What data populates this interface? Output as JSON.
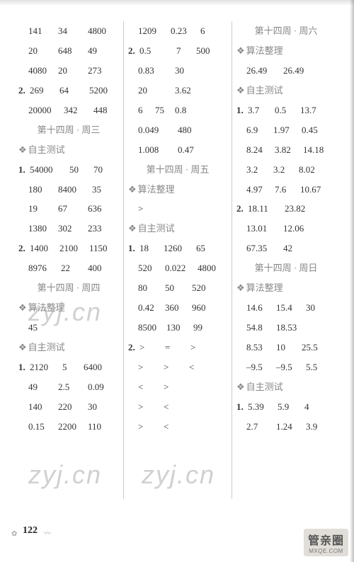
{
  "page_number": "122",
  "watermarks": {
    "text": "zyj.cn"
  },
  "logo": {
    "cn": "管亲圈",
    "en": "MXQE.COM"
  },
  "columns": [
    {
      "rows": [
        {
          "cells": [
            "141",
            "34",
            "4800"
          ],
          "widths": [
            42,
            42,
            42
          ],
          "indent": true
        },
        {
          "cells": [
            "20",
            "648",
            "49"
          ],
          "widths": [
            42,
            42,
            42
          ],
          "indent": true
        },
        {
          "cells": [
            "4080",
            "20",
            "273"
          ],
          "widths": [
            42,
            42,
            42
          ],
          "indent": true
        },
        {
          "label": "2.",
          "cells": [
            "269",
            "64",
            "5200"
          ],
          "widths": [
            42,
            42,
            42
          ]
        },
        {
          "cells": [
            "20000",
            "342",
            "448"
          ],
          "widths": [
            50,
            42,
            34
          ],
          "indent": true
        },
        {
          "section": "第十四周 · 周三"
        },
        {
          "diamond": "自主测试"
        },
        {
          "label": "1.",
          "cells": [
            "54000",
            "50",
            "70"
          ],
          "widths": [
            56,
            34,
            26
          ]
        },
        {
          "cells": [
            "180",
            "8400",
            "35"
          ],
          "widths": [
            42,
            48,
            26
          ],
          "indent": true
        },
        {
          "cells": [
            "19",
            "67",
            "636"
          ],
          "widths": [
            42,
            42,
            42
          ],
          "indent": true
        },
        {
          "cells": [
            "1380",
            "302",
            "233"
          ],
          "widths": [
            42,
            42,
            42
          ],
          "indent": true
        },
        {
          "label": "2.",
          "cells": [
            "1400",
            "2100",
            "1150"
          ],
          "widths": [
            42,
            42,
            42
          ]
        },
        {
          "cells": [
            "8976",
            "22",
            "400"
          ],
          "widths": [
            46,
            38,
            42
          ],
          "indent": true
        },
        {
          "section": "第十四周 · 周四"
        },
        {
          "diamond": "算法整理"
        },
        {
          "cells": [
            "45"
          ],
          "widths": [
            42
          ],
          "indent": true
        },
        {
          "diamond": "自主测试"
        },
        {
          "label": "1.",
          "cells": [
            "2120",
            "5",
            "6400"
          ],
          "widths": [
            46,
            30,
            42
          ]
        },
        {
          "cells": [
            "49",
            "2.5",
            "0.09"
          ],
          "widths": [
            42,
            42,
            42
          ],
          "indent": true
        },
        {
          "cells": [
            "140",
            "220",
            "30"
          ],
          "widths": [
            42,
            42,
            42
          ],
          "indent": true
        },
        {
          "cells": [
            "0.15",
            "2200",
            "110"
          ],
          "widths": [
            42,
            42,
            42
          ],
          "indent": true
        }
      ]
    },
    {
      "rows": [
        {
          "cells": [
            "1209",
            "0.23",
            "6"
          ],
          "widths": [
            46,
            42,
            26
          ],
          "indent": true
        },
        {
          "label": "2.",
          "cells": [
            "0.5",
            "7",
            "500"
          ],
          "widths": [
            52,
            28,
            36
          ]
        },
        {
          "cells": [
            "0.83",
            "30"
          ],
          "widths": [
            52,
            40
          ],
          "indent": true
        },
        {
          "cells": [
            "20",
            "3.62"
          ],
          "widths": [
            52,
            40
          ],
          "indent": true
        },
        {
          "cells": [
            "6",
            "75",
            "0.8"
          ],
          "widths": [
            24,
            28,
            40
          ],
          "indent": true
        },
        {
          "cells": [
            "0.049",
            "480"
          ],
          "widths": [
            56,
            40
          ],
          "indent": true
        },
        {
          "cells": [
            "1.008",
            "0.47"
          ],
          "widths": [
            56,
            40
          ],
          "indent": true
        },
        {
          "section": "第十四周 · 周五"
        },
        {
          "diamond": "算法整理"
        },
        {
          "cells": [
            ">"
          ],
          "widths": [
            20
          ],
          "indent": true
        },
        {
          "diamond": "自主测试"
        },
        {
          "label": "1.",
          "cells": [
            "18",
            "1260",
            "65"
          ],
          "widths": [
            34,
            46,
            28
          ]
        },
        {
          "cells": [
            "520",
            "0.022",
            "4800"
          ],
          "widths": [
            38,
            46,
            40
          ],
          "indent": true
        },
        {
          "cells": [
            "80",
            "50",
            "520"
          ],
          "widths": [
            38,
            38,
            40
          ],
          "indent": true
        },
        {
          "cells": [
            "0.42",
            "360",
            "960"
          ],
          "widths": [
            38,
            38,
            40
          ],
          "indent": true
        },
        {
          "cells": [
            "8500",
            "130",
            "99"
          ],
          "widths": [
            40,
            38,
            30
          ],
          "indent": true
        },
        {
          "label": "2.",
          "cells": [
            ">",
            "=",
            ">"
          ],
          "widths": [
            36,
            36,
            24
          ]
        },
        {
          "cells": [
            ">",
            ">",
            "<"
          ],
          "widths": [
            36,
            36,
            24
          ],
          "indent": true
        },
        {
          "cells": [
            "<",
            ">"
          ],
          "widths": [
            36,
            36
          ],
          "indent": true
        },
        {
          "cells": [
            ">",
            "<"
          ],
          "widths": [
            36,
            36
          ],
          "indent": true
        },
        {
          "cells": [
            ">",
            "<"
          ],
          "widths": [
            36,
            36
          ],
          "indent": true
        }
      ]
    },
    {
      "rows": [
        {
          "section": "第十四周 · 周六"
        },
        {
          "diamond": "算法整理"
        },
        {
          "cells": [
            "26.49",
            "26.49"
          ],
          "widths": [
            52,
            48
          ],
          "indent": true
        },
        {
          "diamond": "自主测试"
        },
        {
          "label": "1.",
          "cells": [
            "3.7",
            "0.5",
            "13.7"
          ],
          "widths": [
            38,
            36,
            40
          ]
        },
        {
          "cells": [
            "6.9",
            "1.97",
            "0.45"
          ],
          "widths": [
            38,
            40,
            40
          ],
          "indent": true
        },
        {
          "cells": [
            "8.24",
            "3.82",
            "14.18"
          ],
          "widths": [
            40,
            40,
            44
          ],
          "indent": true
        },
        {
          "cells": [
            "3.2",
            "3.2",
            "8.02"
          ],
          "widths": [
            38,
            36,
            40
          ],
          "indent": true
        },
        {
          "cells": [
            "4.97",
            "7.6",
            "10.67"
          ],
          "widths": [
            40,
            36,
            44
          ],
          "indent": true
        },
        {
          "label": "2.",
          "cells": [
            "18.11",
            "23.82"
          ],
          "widths": [
            52,
            48
          ]
        },
        {
          "cells": [
            "13.01",
            "12.06"
          ],
          "widths": [
            52,
            48
          ],
          "indent": true
        },
        {
          "cells": [
            "67.35",
            "42"
          ],
          "widths": [
            52,
            40
          ],
          "indent": true
        },
        {
          "section": "第十四周 · 周日"
        },
        {
          "diamond": "算法整理"
        },
        {
          "cells": [
            "14.6",
            "15.4",
            "30"
          ],
          "widths": [
            42,
            42,
            30
          ],
          "indent": true
        },
        {
          "cells": [
            "54.8",
            "18.53"
          ],
          "widths": [
            42,
            48
          ],
          "indent": true
        },
        {
          "cells": [
            "8.53",
            "10",
            "25.5"
          ],
          "widths": [
            42,
            36,
            40
          ],
          "indent": true
        },
        {
          "cells": [
            "–9.5",
            "–9.5",
            "5.5"
          ],
          "widths": [
            42,
            42,
            34
          ],
          "indent": true
        },
        {
          "diamond": "自主测试"
        },
        {
          "label": "1.",
          "cells": [
            "5.39",
            "5.9",
            "4"
          ],
          "widths": [
            42,
            38,
            24
          ]
        },
        {
          "cells": [
            "2.7",
            "1.24",
            "3.9"
          ],
          "widths": [
            42,
            42,
            34
          ],
          "indent": true
        }
      ]
    }
  ]
}
